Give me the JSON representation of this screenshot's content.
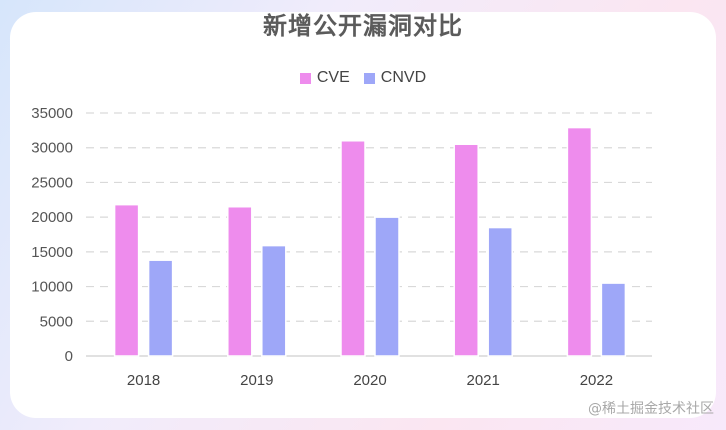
{
  "chart_data": {
    "type": "bar",
    "title": "新增公开漏洞对比",
    "categories": [
      "2018",
      "2019",
      "2020",
      "2021",
      "2022"
    ],
    "series": [
      {
        "name": "CVE",
        "values": [
          21800,
          21500,
          31000,
          30500,
          32900
        ]
      },
      {
        "name": "CNVD",
        "values": [
          13800,
          15900,
          20000,
          18500,
          10500
        ]
      }
    ],
    "ylim": [
      0,
      35000
    ],
    "yticks": [
      0,
      5000,
      10000,
      15000,
      20000,
      25000,
      30000,
      35000
    ],
    "grid": true,
    "legend_position": "top-center",
    "colors": {
      "CVE": "#ee8ced",
      "CNVD": "#9ea7f8"
    }
  },
  "watermark": "@稀土掘金技术社区"
}
